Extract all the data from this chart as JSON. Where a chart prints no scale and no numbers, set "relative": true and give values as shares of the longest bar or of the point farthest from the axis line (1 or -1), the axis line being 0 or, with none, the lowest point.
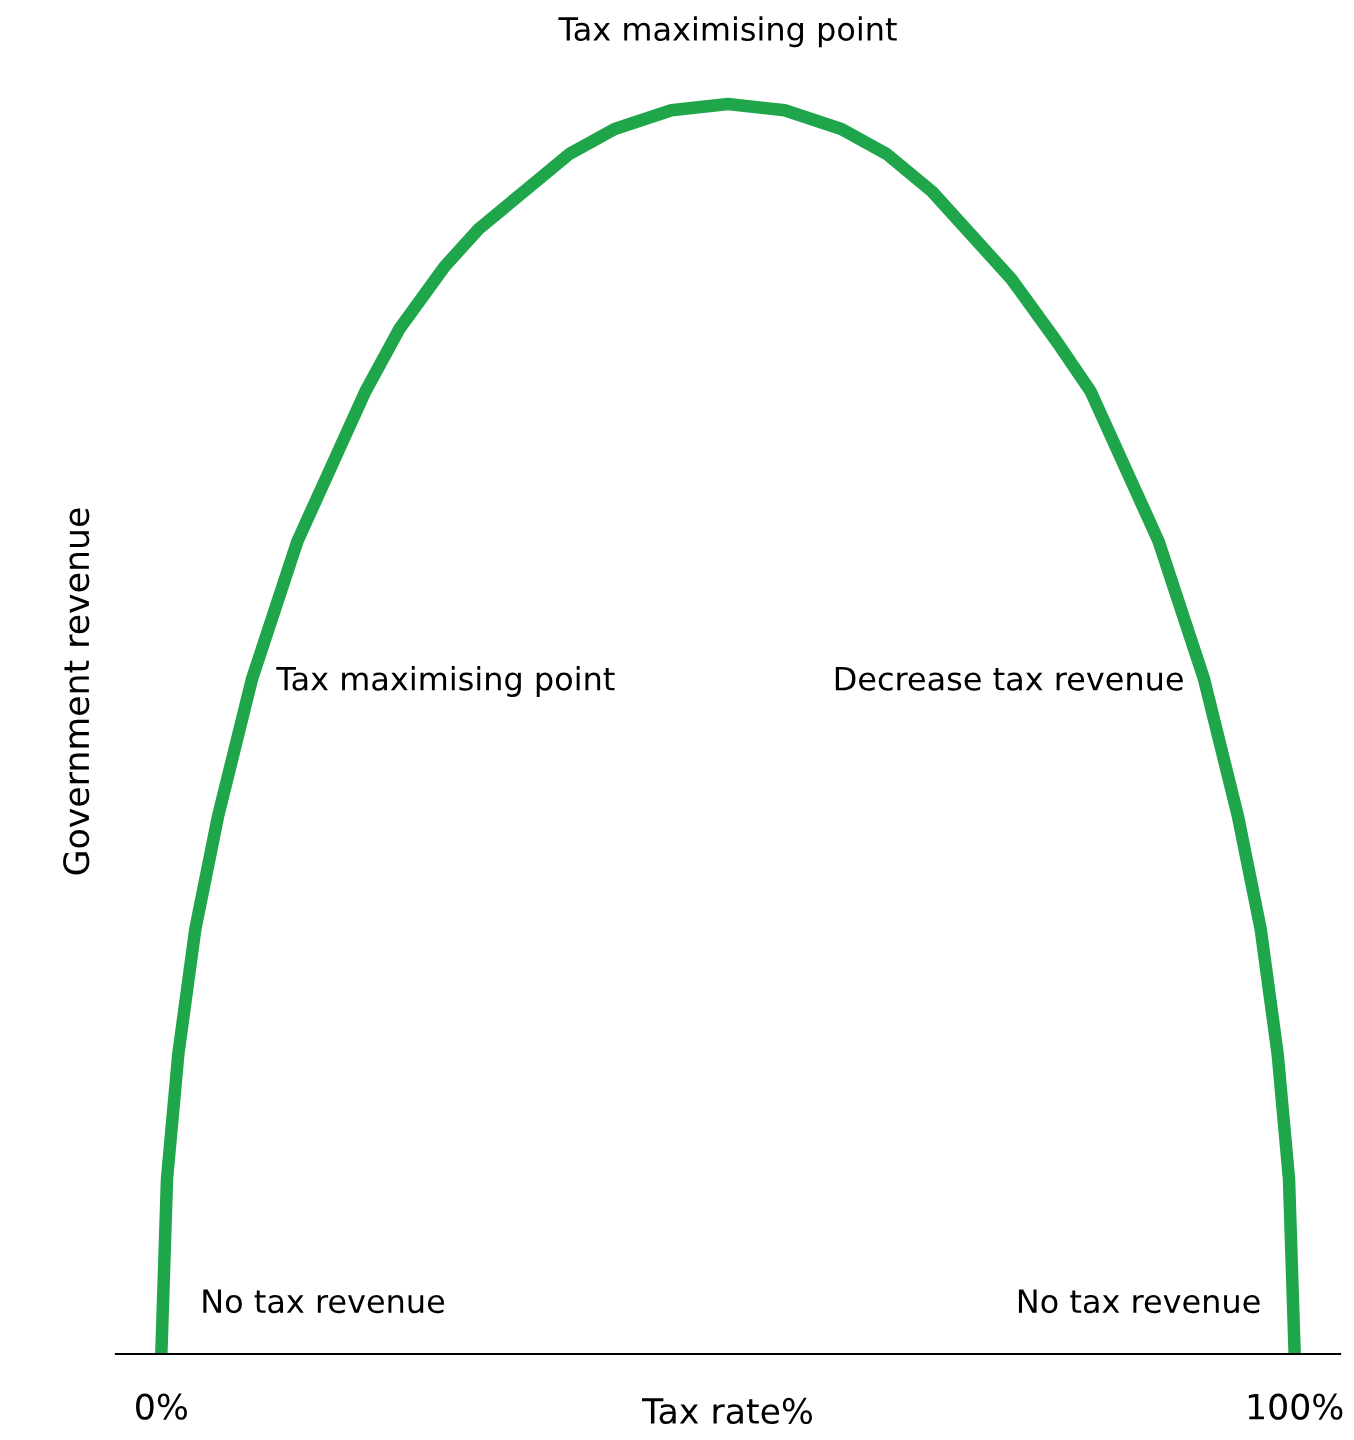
{
  "chart_data": {
    "type": "line",
    "relative": true,
    "xlabel": "Tax rate%",
    "ylabel": "Government revenue",
    "x": [
      0,
      0.5,
      1.5,
      3,
      5,
      8,
      12,
      15,
      18,
      21,
      25,
      28,
      32,
      36,
      40,
      45,
      50,
      55,
      60,
      64,
      68,
      72,
      75,
      79,
      82,
      85,
      88,
      92,
      95,
      97,
      98.5,
      99.5,
      100
    ],
    "series": [
      {
        "color": "#1fa64a",
        "values": [
          0,
          0.14,
          0.24,
          0.34,
          0.43,
          0.54,
          0.65,
          0.71,
          0.77,
          0.82,
          0.87,
          0.9,
          0.93,
          0.96,
          0.98,
          0.995,
          1,
          0.995,
          0.98,
          0.96,
          0.93,
          0.89,
          0.86,
          0.81,
          0.77,
          0.71,
          0.65,
          0.54,
          0.43,
          0.34,
          0.24,
          0.14,
          0
        ]
      }
    ],
    "xlim": [
      -4,
      104
    ],
    "xticks": [
      {
        "value": 0,
        "label": "0%"
      },
      {
        "value": 100,
        "label": "100%"
      }
    ],
    "tick_labels": "x",
    "grid": false,
    "legend": false,
    "marker": "none",
    "line_style": "solid",
    "annotations": [
      {
        "text": "Tax maximising point",
        "x": 50,
        "y": 1
      },
      "Tax maximising point",
      "Decrease tax revenue",
      {
        "text": "No tax revenue",
        "x": 0,
        "y": 0
      },
      {
        "text": "No tax revenue",
        "x": 100,
        "y": 0
      }
    ]
  }
}
